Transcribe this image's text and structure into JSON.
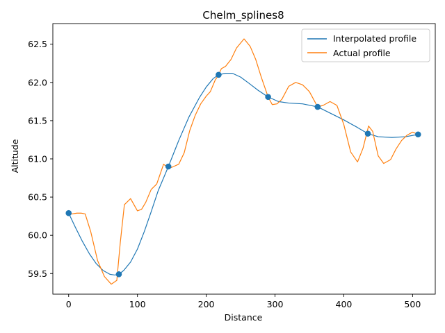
{
  "chart_data": {
    "type": "line",
    "title": "Chelm_splines8",
    "xlabel": "Distance",
    "ylabel": "Altitude",
    "xlim": [
      -23,
      533
    ],
    "ylim": [
      59.23,
      62.77
    ],
    "xticks": [
      0,
      100,
      200,
      300,
      400,
      500
    ],
    "yticks": [
      59.5,
      60.0,
      60.5,
      61.0,
      61.5,
      62.0,
      62.5
    ],
    "xtick_labels": [
      "0",
      "100",
      "200",
      "300",
      "400",
      "500"
    ],
    "ytick_labels": [
      "59.5",
      "60.0",
      "60.5",
      "61.0",
      "61.5",
      "62.0",
      "62.5"
    ],
    "grid": false,
    "legend_position": "top-right",
    "colors": {
      "interpolated": "#1f77b4",
      "actual": "#ff7f0e",
      "knots": "#1f77b4"
    },
    "series": [
      {
        "name": "Interpolated profile",
        "kind": "line",
        "x": [
          0,
          10,
          20,
          30,
          40,
          50,
          60,
          67,
          73,
          80,
          90,
          100,
          110,
          120,
          130,
          145,
          160,
          175,
          190,
          200,
          210,
          218,
          228,
          238,
          250,
          262,
          275,
          290,
          305,
          320,
          340,
          362,
          380,
          400,
          420,
          435,
          450,
          470,
          490,
          508
        ],
        "y": [
          60.29,
          60.1,
          59.92,
          59.76,
          59.63,
          59.54,
          59.49,
          59.48,
          59.49,
          59.54,
          59.65,
          59.82,
          60.05,
          60.31,
          60.58,
          60.9,
          61.24,
          61.55,
          61.8,
          61.94,
          62.05,
          62.1,
          62.12,
          62.12,
          62.07,
          61.99,
          61.9,
          61.81,
          61.75,
          61.73,
          61.72,
          61.68,
          61.6,
          61.51,
          61.41,
          61.33,
          61.29,
          61.28,
          61.29,
          61.32
        ]
      },
      {
        "name": "Actual profile",
        "kind": "line",
        "x": [
          0,
          5,
          12,
          18,
          24,
          32,
          42,
          52,
          62,
          70,
          75,
          81,
          90,
          100,
          106,
          112,
          120,
          128,
          138,
          145,
          150,
          160,
          168,
          176,
          184,
          192,
          200,
          206,
          213,
          218,
          222,
          228,
          236,
          244,
          255,
          264,
          272,
          280,
          290,
          296,
          303,
          310,
          320,
          330,
          340,
          350,
          362,
          370,
          380,
          390,
          400,
          410,
          420,
          428,
          436,
          442,
          450,
          458,
          468,
          476,
          484,
          492,
          500,
          508
        ],
        "y": [
          60.29,
          60.28,
          60.29,
          60.29,
          60.28,
          60.05,
          59.67,
          59.46,
          59.36,
          59.41,
          59.9,
          60.4,
          60.48,
          60.32,
          60.34,
          60.43,
          60.6,
          60.67,
          60.93,
          60.88,
          60.89,
          60.93,
          61.08,
          61.37,
          61.57,
          61.72,
          61.82,
          61.88,
          62.03,
          62.1,
          62.18,
          62.21,
          62.3,
          62.45,
          62.57,
          62.47,
          62.3,
          62.07,
          61.81,
          61.71,
          61.72,
          61.78,
          61.95,
          62.0,
          61.97,
          61.88,
          61.68,
          61.7,
          61.75,
          61.7,
          61.45,
          61.09,
          60.96,
          61.14,
          61.43,
          61.36,
          61.04,
          60.94,
          60.99,
          61.13,
          61.24,
          61.31,
          61.35,
          61.32
        ]
      },
      {
        "name": "",
        "kind": "markers",
        "x": [
          0,
          73,
          145,
          218,
          290,
          362,
          435,
          508
        ],
        "y": [
          60.29,
          59.49,
          60.9,
          62.1,
          61.81,
          61.68,
          61.33,
          61.32
        ]
      }
    ]
  }
}
